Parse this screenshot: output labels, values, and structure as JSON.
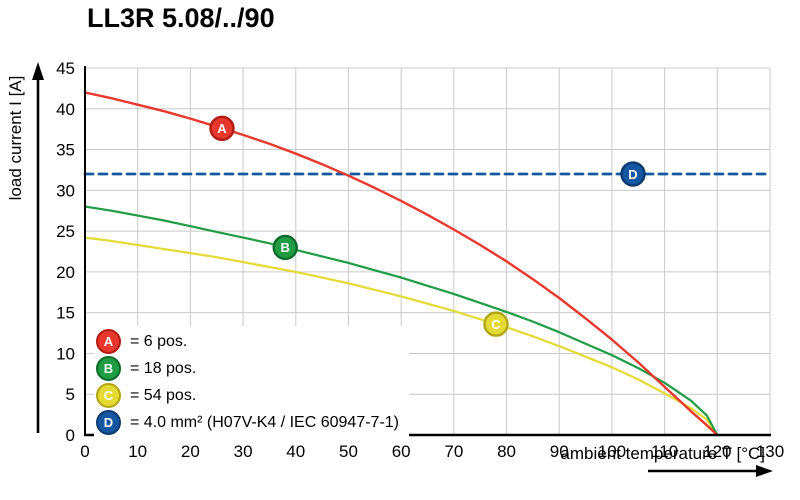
{
  "chart_data": {
    "type": "line",
    "title": "LL3R 5.08/../90",
    "xlabel": "ambient temperature T [°C]",
    "ylabel": "load current I [A]",
    "xlim": [
      0,
      130
    ],
    "ylim": [
      0,
      45
    ],
    "x_ticks": [
      0,
      10,
      20,
      30,
      40,
      50,
      60,
      70,
      80,
      90,
      100,
      110,
      120,
      130
    ],
    "y_ticks": [
      0,
      5,
      10,
      15,
      20,
      25,
      30,
      35,
      40,
      45
    ],
    "grid": true,
    "legend_position": "lower-left",
    "colors": {
      "grid": "#c9c9c9",
      "axis": "#000000"
    },
    "series": [
      {
        "name": "D",
        "label": "4.0 mm² (H07V-K4 / IEC 60947-7-1)",
        "color": "#1557a0",
        "ring": "#0c3a70",
        "style": "dashed",
        "width": 2.8,
        "marker": [
          104,
          32
        ],
        "points": [
          [
            0,
            32
          ],
          [
            130,
            32
          ]
        ]
      },
      {
        "name": "C",
        "label": "54 pos.",
        "color": "#e3da33",
        "ring": "#b3a512",
        "style": "solid",
        "width": 2.2,
        "marker": [
          78,
          13.6
        ],
        "points": [
          [
            0,
            24.2
          ],
          [
            5,
            23.8
          ],
          [
            10,
            23.3
          ],
          [
            15,
            22.8
          ],
          [
            20,
            22.3
          ],
          [
            25,
            21.8
          ],
          [
            30,
            21.2
          ],
          [
            35,
            20.6
          ],
          [
            40,
            20.0
          ],
          [
            45,
            19.3
          ],
          [
            50,
            18.6
          ],
          [
            55,
            17.8
          ],
          [
            60,
            17.0
          ],
          [
            65,
            16.1
          ],
          [
            70,
            15.2
          ],
          [
            75,
            14.2
          ],
          [
            80,
            13.2
          ],
          [
            85,
            12.1
          ],
          [
            90,
            10.9
          ],
          [
            95,
            9.6
          ],
          [
            100,
            8.3
          ],
          [
            105,
            6.8
          ],
          [
            110,
            5.1
          ],
          [
            115,
            3.3
          ],
          [
            118,
            1.9
          ],
          [
            120,
            0
          ]
        ]
      },
      {
        "name": "B",
        "label": "18 pos.",
        "color": "#1f9c44",
        "ring": "#0c6b2a",
        "style": "solid",
        "width": 2.2,
        "marker": [
          38,
          23.0
        ],
        "points": [
          [
            0,
            28
          ],
          [
            5,
            27.5
          ],
          [
            10,
            26.9
          ],
          [
            15,
            26.3
          ],
          [
            20,
            25.6
          ],
          [
            25,
            24.9
          ],
          [
            30,
            24.2
          ],
          [
            35,
            23.5
          ],
          [
            40,
            22.7
          ],
          [
            45,
            21.9
          ],
          [
            50,
            21.1
          ],
          [
            55,
            20.2
          ],
          [
            60,
            19.3
          ],
          [
            65,
            18.3
          ],
          [
            70,
            17.3
          ],
          [
            75,
            16.2
          ],
          [
            80,
            15.1
          ],
          [
            85,
            13.9
          ],
          [
            90,
            12.6
          ],
          [
            95,
            11.2
          ],
          [
            100,
            9.8
          ],
          [
            105,
            8.2
          ],
          [
            110,
            6.4
          ],
          [
            115,
            4.2
          ],
          [
            118,
            2.4
          ],
          [
            120,
            0
          ]
        ]
      },
      {
        "name": "A",
        "label": "6 pos.",
        "color": "#e8372c",
        "ring": "#b01c12",
        "style": "solid",
        "width": 2.4,
        "marker": [
          26,
          37.6
        ],
        "points": [
          [
            0,
            42
          ],
          [
            5,
            41.3
          ],
          [
            10,
            40.5
          ],
          [
            15,
            39.7
          ],
          [
            20,
            38.8
          ],
          [
            25,
            37.8
          ],
          [
            30,
            36.8
          ],
          [
            35,
            35.7
          ],
          [
            40,
            34.5
          ],
          [
            45,
            33.2
          ],
          [
            50,
            31.8
          ],
          [
            55,
            30.3
          ],
          [
            60,
            28.7
          ],
          [
            65,
            27.0
          ],
          [
            70,
            25.2
          ],
          [
            75,
            23.3
          ],
          [
            80,
            21.3
          ],
          [
            85,
            19.1
          ],
          [
            90,
            16.8
          ],
          [
            95,
            14.3
          ],
          [
            100,
            11.7
          ],
          [
            105,
            8.9
          ],
          [
            110,
            5.9
          ],
          [
            115,
            2.9
          ],
          [
            118,
            1.2
          ],
          [
            120,
            0
          ]
        ]
      }
    ],
    "legend": [
      {
        "key": "A",
        "fill": "#e8372c",
        "ring": "#b01c12",
        "text": "= 6 pos."
      },
      {
        "key": "B",
        "fill": "#1f9c44",
        "ring": "#0c6b2a",
        "text": "= 18 pos."
      },
      {
        "key": "C",
        "fill": "#e3da33",
        "ring": "#b3a512",
        "text": "= 54 pos."
      },
      {
        "key": "D",
        "fill": "#1557a0",
        "ring": "#0c3a70",
        "text": "= 4.0 mm² (H07V-K4 / IEC 60947-7-1)"
      }
    ]
  }
}
